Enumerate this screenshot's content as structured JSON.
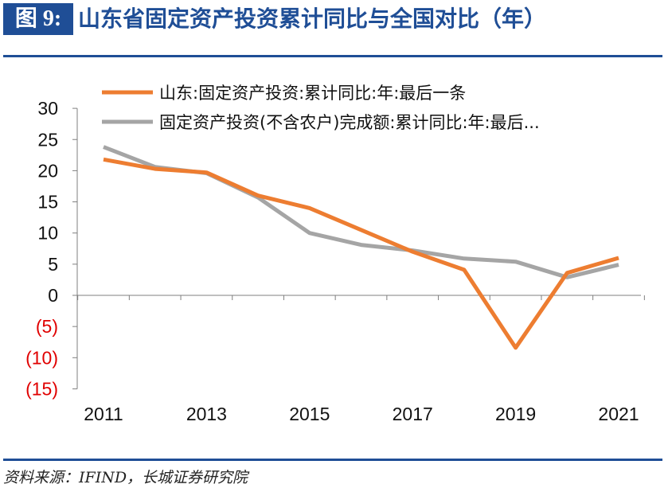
{
  "header": {
    "figure_label": "图 9:",
    "title": "山东省固定资产投资累计同比与全国对比（年）"
  },
  "source": "资料来源：IFIND，长城证券研究院",
  "chart_data": {
    "type": "line",
    "x": [
      2011,
      2012,
      2013,
      2014,
      2015,
      2016,
      2017,
      2018,
      2019,
      2020,
      2021
    ],
    "x_tick_labels": [
      "2011",
      "2013",
      "2015",
      "2017",
      "2019",
      "2021"
    ],
    "y_tick_labels": [
      "30",
      "25",
      "20",
      "15",
      "10",
      "5",
      "0",
      "(5)",
      "(10)",
      "(15)"
    ],
    "ylim": [
      -15,
      30
    ],
    "negative_tick_color": "#e00000",
    "legend_position": "top-left",
    "series": [
      {
        "name": "山东:固定资产投资:累计同比:年:最后一条",
        "color": "#ed7d31",
        "values": [
          21.8,
          20.3,
          19.7,
          16.0,
          14.0,
          10.5,
          7.0,
          4.1,
          -8.4,
          3.6,
          6.0
        ]
      },
      {
        "name": "固定资产投资(不含农户)完成额:累计同比:年:最后...",
        "color": "#a5a5a5",
        "values": [
          23.8,
          20.6,
          19.6,
          15.7,
          10.0,
          8.1,
          7.2,
          5.9,
          5.4,
          2.9,
          4.9
        ]
      }
    ]
  }
}
